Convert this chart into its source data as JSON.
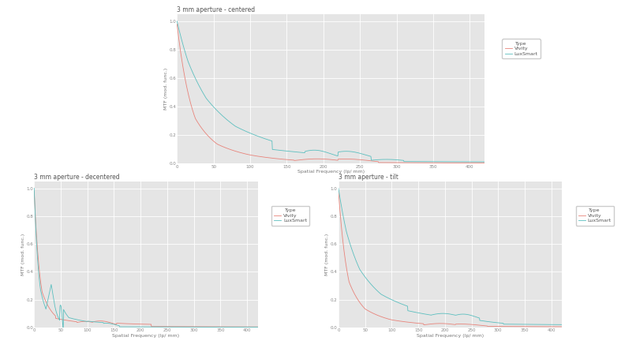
{
  "title_centered": "3 mm aperture - centered",
  "title_decentered": "3 mm aperture - decentered",
  "title_tilt": "3 mm aperture - tilt",
  "xlabel": "Spatial Frequency (lp/ mm)",
  "ylabel": "MTF (mod. func.)",
  "legend_title": "Type",
  "legend_vivity": "Vivity",
  "legend_luxsmart": "LuxSmart",
  "color_vivity": "#e8837a",
  "color_luxsmart": "#5bbfbf",
  "xlim": [
    0,
    420
  ],
  "ylim": [
    0.0,
    1.05
  ],
  "xticks": [
    0,
    50,
    100,
    150,
    200,
    250,
    300,
    350,
    400
  ],
  "yticks": [
    0.0,
    0.2,
    0.4,
    0.6,
    0.8,
    1.0
  ],
  "bg_color": "#e5e5e5",
  "fig_color": "#ffffff",
  "grid_color": "#ffffff",
  "title_fontsize": 5.5,
  "label_fontsize": 4.5,
  "tick_fontsize": 4.0,
  "legend_fontsize": 4.5
}
